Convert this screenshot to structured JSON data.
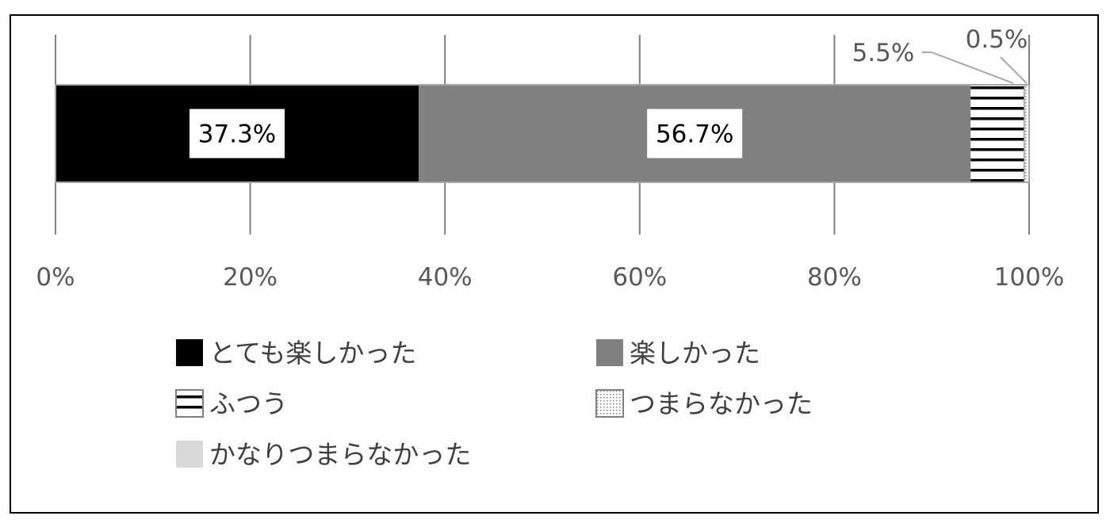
{
  "chart_data": {
    "type": "bar",
    "orientation": "horizontal",
    "stacked": true,
    "xlim": [
      0,
      100
    ],
    "x_ticks": [
      "0%",
      "20%",
      "40%",
      "60%",
      "80%",
      "100%"
    ],
    "series": [
      {
        "name": "とても楽しかった",
        "value": 37.3,
        "label": "37.3%",
        "color": "#000000",
        "pattern": "solid"
      },
      {
        "name": "楽しかった",
        "value": 56.7,
        "label": "56.7%",
        "color": "#808080",
        "pattern": "solid"
      },
      {
        "name": "ふつう",
        "value": 5.5,
        "label": "5.5%",
        "color": "#000000",
        "pattern": "horizontal-lines"
      },
      {
        "name": "つまらなかった",
        "value": 0.5,
        "label": "0.5%",
        "color": "#999999",
        "pattern": "dots"
      },
      {
        "name": "かなりつまらなかった",
        "value": 0.0,
        "color": "#d9d9d9",
        "pattern": "solid"
      }
    ],
    "grid": true,
    "legend_position": "bottom"
  }
}
